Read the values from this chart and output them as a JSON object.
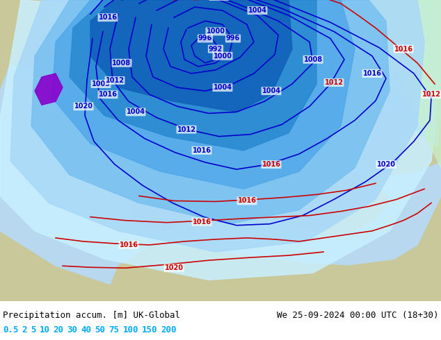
{
  "title_left": "Precipitation accum. [m] UK-Global",
  "title_right": "We 25-09-2024 00:00 UTC (18+30)",
  "legend_values": [
    "0.5",
    "2",
    "5",
    "10",
    "20",
    "30",
    "40",
    "50",
    "75",
    "100",
    "150",
    "200"
  ],
  "background_color": "#ffffff",
  "map_bg_land": "#c8c89a",
  "figure_width": 6.34,
  "figure_height": 4.9,
  "dpi": 100,
  "blue_contour_color": "#0000cc",
  "red_contour_color": "#cc0000",
  "legend_text_color": "#00aaff"
}
